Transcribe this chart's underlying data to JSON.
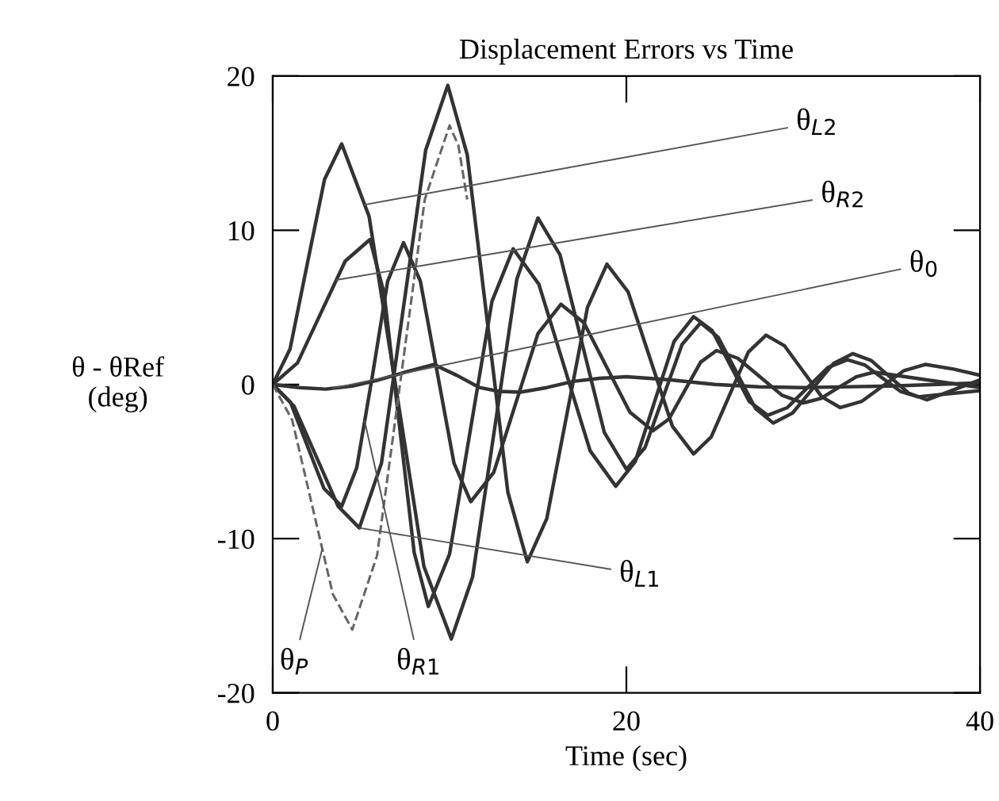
{
  "chart_data": {
    "type": "line",
    "title": "Displacement Errors vs Time",
    "xlabel": "Time (sec)",
    "ylabel": "θ - θRef\n(deg)",
    "xlim": [
      0,
      40
    ],
    "xticks": [
      0,
      20,
      40
    ],
    "ylim": [
      -20,
      20
    ],
    "yticks": [
      -20,
      -10,
      0,
      10,
      20
    ],
    "grid": false,
    "legend": false,
    "series": [
      {
        "name": "θ$_{L2}$",
        "color": "#333333",
        "x": [
          0,
          0.98,
          1.95,
          2.93,
          3.9,
          5.45,
          7.0,
          8.55,
          10.1,
          11.3,
          12.55,
          13.8,
          15.0,
          16.25,
          17.5,
          18.75,
          20.0,
          21.05,
          22.1,
          23.15,
          24.2,
          25.2,
          26.25,
          27.3,
          28.3,
          29.4,
          30.55,
          31.7,
          32.8,
          33.85,
          34.9,
          35.95,
          37,
          38.5,
          40
        ],
        "values": [
          0,
          2.3,
          7.8,
          13.3,
          15.6,
          10.9,
          -0.45,
          -11.8,
          -16.5,
          -12.5,
          -2.85,
          6.8,
          10.8,
          8.4,
          2.65,
          -3.1,
          -5.5,
          -4.1,
          -0.75,
          2.6,
          4.0,
          3.05,
          0.75,
          -1.55,
          -2.5,
          -1.85,
          -0.25,
          1.35,
          2.0,
          1.55,
          0.5,
          -0.55,
          -1,
          -0.35,
          0.3
        ]
      },
      {
        "name": "θ$_{R2}$",
        "color": "#333333",
        "x": [
          0,
          1.4,
          2.75,
          4.1,
          5.5,
          6.3,
          7.15,
          8.0,
          8.8,
          10.0,
          11.2,
          12.4,
          13.6,
          15.05,
          16.5,
          17.95,
          19.4,
          20.5,
          21.6,
          22.7,
          23.8,
          24.85,
          25.9,
          26.95,
          28.0,
          29.1,
          30.25,
          31.4,
          32.5,
          33.5,
          34.5,
          35.5,
          36.5,
          38.2,
          40
        ],
        "values": [
          0,
          1.4,
          4.7,
          8.0,
          9.4,
          5.9,
          -2.5,
          -10.9,
          -14.4,
          -11.0,
          -2.8,
          5.4,
          8.8,
          6.5,
          1.1,
          -4.3,
          -6.6,
          -5.0,
          -1.1,
          2.8,
          4.4,
          3.5,
          1.2,
          -1.1,
          -2.0,
          -1.5,
          -0.2,
          1.1,
          1.6,
          1.25,
          0.4,
          -0.45,
          -0.8,
          -0.6,
          -0.4
        ]
      },
      {
        "name": "θ$_{0}$",
        "color": "#333333",
        "x": [
          0,
          1.5,
          3,
          4.5,
          6,
          7.5,
          9.1,
          10.4,
          11.7,
          12.8,
          14,
          15.5,
          17,
          18.5,
          20,
          22.5,
          25,
          27.5,
          30,
          35,
          40
        ],
        "values": [
          0,
          -0.2,
          -0.3,
          -0.1,
          0.3,
          0.8,
          1.3,
          0.6,
          -0.2,
          -0.45,
          -0.5,
          -0.2,
          0.2,
          0.4,
          0.5,
          0.3,
          0,
          -0.15,
          -0.2,
          -0.1,
          0.1
        ]
      },
      {
        "name": "θ$_{L1}$",
        "color": "#333333",
        "x": [
          0,
          1.2,
          2.45,
          3.7,
          4.9,
          6.15,
          7.4,
          8.65,
          9.9,
          11.0,
          12.15,
          13.3,
          14.4,
          15.5,
          16.65,
          17.8,
          18.9,
          20.1,
          21.35,
          22.6,
          23.8,
          24.8,
          25.85,
          26.9,
          27.9,
          28.95,
          30.0,
          31.05,
          32.1,
          33.3,
          34.5,
          35.7,
          36.9,
          38.5,
          40
        ],
        "values": [
          0,
          -1.4,
          -4.65,
          -7.9,
          -9.3,
          -5.1,
          5.05,
          15.2,
          19.4,
          14.9,
          3.95,
          -7.0,
          -11.5,
          -8.7,
          -1.85,
          5.0,
          7.8,
          6.0,
          1.65,
          -2.7,
          -4.5,
          -3.4,
          -0.65,
          2.1,
          3.2,
          2.5,
          0.85,
          -0.8,
          -1.5,
          -1.1,
          -0.1,
          0.9,
          1.3,
          1.0,
          0.6
        ]
      },
      {
        "name": "θ$_{R1}$",
        "color": "#333333",
        "x": [
          0,
          1.0,
          1.95,
          2.9,
          3.9,
          4.75,
          5.65,
          6.5,
          7.4,
          8.35,
          9.3,
          10.25,
          11.2,
          12.5,
          13.75,
          15.0,
          16.3,
          17.6,
          18.9,
          20.2,
          21.5,
          22.4,
          23.3,
          24.2,
          25.1,
          26.3,
          27.55,
          28.8,
          30,
          31,
          32,
          33,
          34,
          37,
          40
        ],
        "values": [
          0,
          -1.15,
          -3.95,
          -6.75,
          -7.9,
          -5.4,
          0.65,
          6.7,
          9.2,
          6.7,
          0.8,
          -5.1,
          -7.6,
          -5.7,
          -1.2,
          3.3,
          5.2,
          4.0,
          1.1,
          -1.8,
          -3.0,
          -2.25,
          -0.4,
          1.45,
          2.2,
          1.7,
          0.5,
          -0.7,
          -1.2,
          -0.9,
          -0.2,
          0.5,
          0.8,
          0.3,
          -0.2
        ]
      },
      {
        "name": "θ$_{P}$",
        "color": "#666666",
        "line_style": "dashed",
        "x": [
          0,
          1.1,
          2.25,
          3.4,
          4.5,
          5.9,
          7.25,
          8.6,
          10,
          10.5,
          11
        ],
        "values": [
          0,
          -2.3,
          -7.95,
          -13.6,
          -15.9,
          -11.1,
          0.45,
          12.0,
          16.8,
          15.5,
          12
        ]
      }
    ]
  }
}
